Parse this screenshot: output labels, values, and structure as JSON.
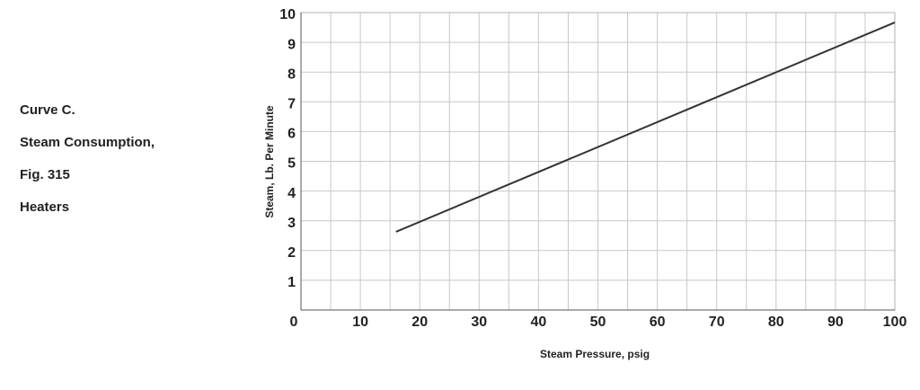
{
  "chart_data": {
    "type": "line",
    "caption": [
      "Curve C.",
      "Steam Consumption,",
      "Fig. 315",
      "Heaters"
    ],
    "xlabel": "Steam Pressure, psig",
    "ylabel": "Steam, Lb. Per Minute",
    "x": [
      16,
      100
    ],
    "series": [
      {
        "color": "#333333",
        "values": [
          2.63,
          9.67
        ]
      }
    ],
    "xlim": [
      0,
      100
    ],
    "xticks": [
      0,
      10,
      20,
      30,
      40,
      50,
      60,
      70,
      80,
      90,
      100
    ],
    "x_minor_ticks": [
      5,
      15,
      25,
      35,
      45,
      55,
      65,
      75,
      85,
      95
    ],
    "ylim": [
      0,
      10
    ],
    "yticks": [
      1,
      2,
      3,
      4,
      5,
      6,
      7,
      8,
      9,
      10
    ],
    "grid": true
  }
}
